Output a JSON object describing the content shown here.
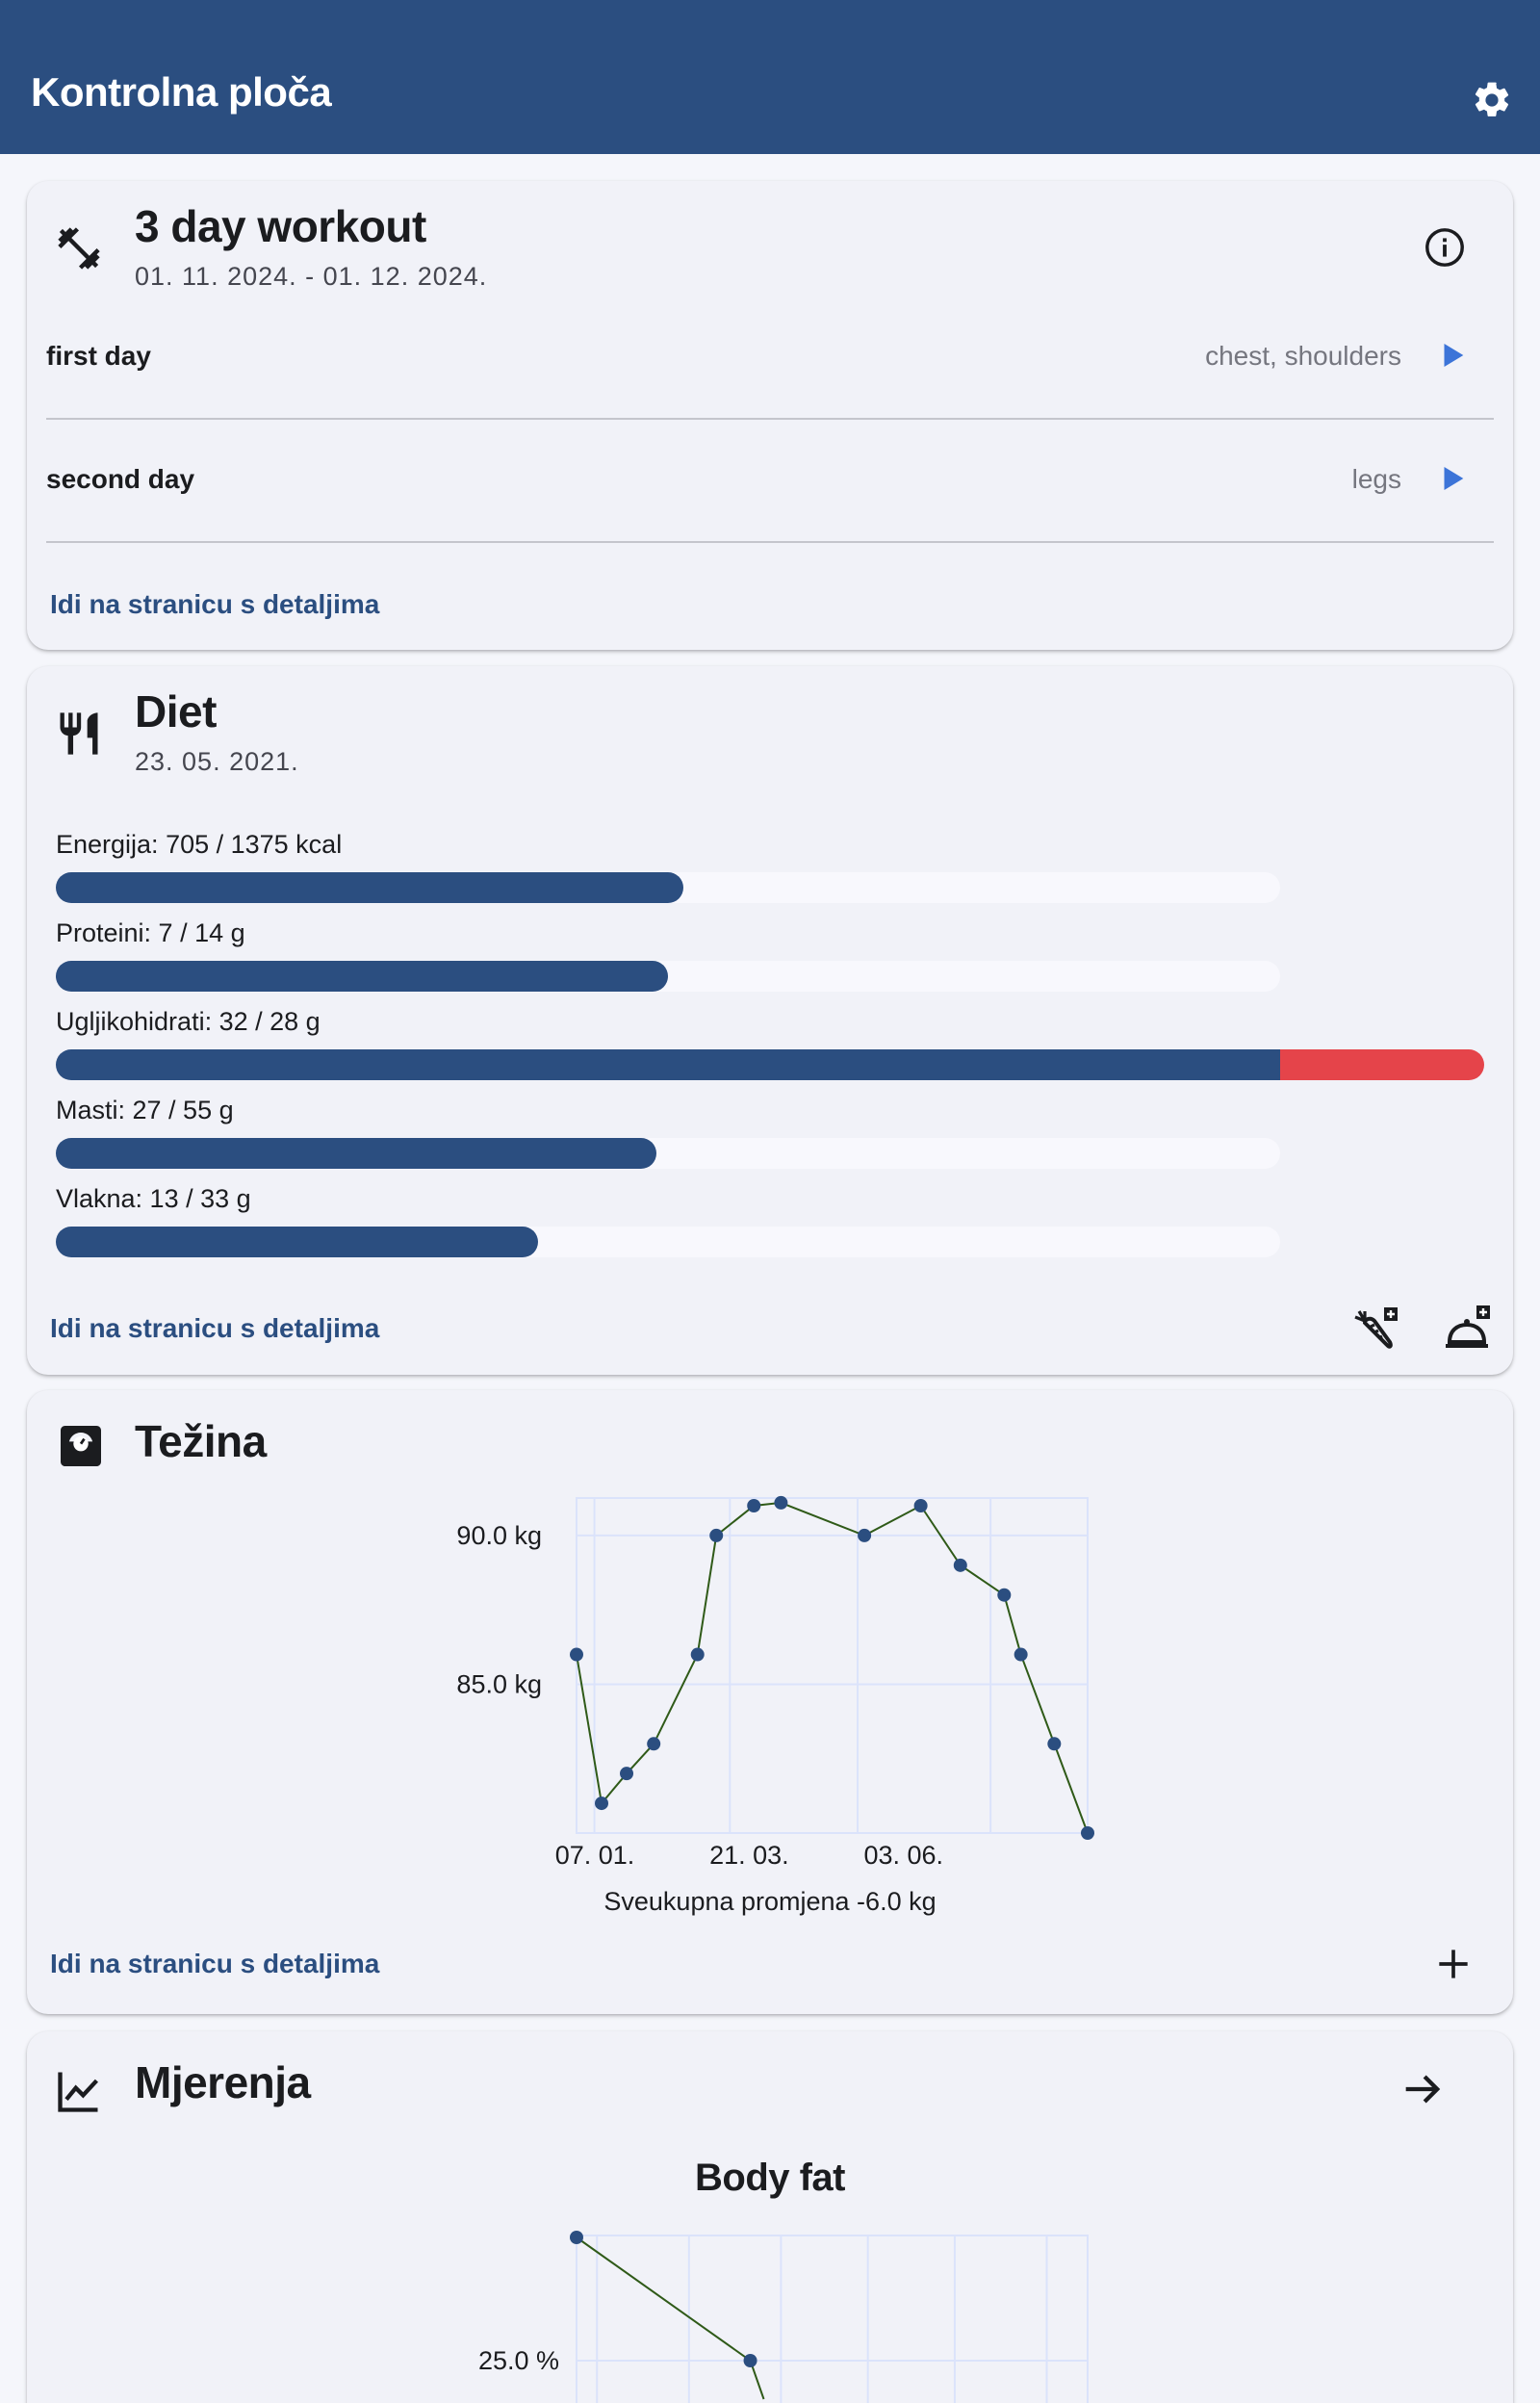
{
  "appbar": {
    "title": "Kontrolna ploča",
    "settings_icon": "gear-icon"
  },
  "workout": {
    "icon": "dumbbell-icon",
    "title": "3 day workout",
    "dates": "01. 11. 2024. - 01. 12. 2024.",
    "info_icon": "info-icon",
    "days": [
      {
        "name": "first day",
        "muscles": "chest, shoulders",
        "icon": "play-icon"
      },
      {
        "name": "second day",
        "muscles": "legs",
        "icon": "play-icon"
      }
    ],
    "details_link": "Idi na stranicu s detaljima"
  },
  "diet": {
    "icon": "cutlery-icon",
    "title": "Diet",
    "date": "23. 05. 2021.",
    "nutrients": [
      {
        "label": "Energija: 705 / 1375 kcal",
        "value": 705,
        "target": 1375
      },
      {
        "label": "Proteini: 7 / 14 g",
        "value": 7,
        "target": 14
      },
      {
        "label": "Ugljikohidrati: 32 / 28 g",
        "value": 32,
        "target": 28
      },
      {
        "label": "Masti: 27 / 55 g",
        "value": 27,
        "target": 55
      },
      {
        "label": "Vlakna: 13 / 33 g",
        "value": 13,
        "target": 33
      }
    ],
    "details_link": "Idi na stranicu s detaljima",
    "action_icons": [
      "add-ingredient-icon",
      "add-meal-icon"
    ],
    "colors": {
      "fill": "#2b4e80",
      "track": "#f8f8fd",
      "over": "#e5444a"
    }
  },
  "weight": {
    "icon": "scale-icon",
    "title": "Težina",
    "details_link": "Idi na stranicu s detaljima",
    "add_icon": "plus-icon",
    "summary": "Sveukupna promjena -6.0 kg",
    "chart_data": {
      "type": "line",
      "ytick_labels": [
        "85.0 kg",
        "90.0 kg"
      ],
      "yticks": [
        85,
        90
      ],
      "xtick_labels": [
        "07. 01.",
        "21. 03.",
        "03. 06."
      ],
      "xticks": [
        "2024-01-07",
        "2024-03-21",
        "2024-06-03"
      ],
      "x": [
        "2024-01-01",
        "2024-01-13",
        "2024-01-25",
        "2024-02-07",
        "2024-02-28",
        "2024-03-08",
        "2024-03-26",
        "2024-04-08",
        "2024-05-18",
        "2024-06-14",
        "2024-07-03",
        "2024-07-24",
        "2024-08-01",
        "2024-08-17",
        "2024-09-02"
      ],
      "y": [
        86.0,
        81.0,
        82.0,
        83.0,
        86.0,
        90.0,
        91.0,
        91.1,
        90.0,
        91.0,
        89.0,
        88.0,
        86.0,
        83.0,
        80.0
      ],
      "xlim": [
        "2024-01-01",
        "2024-09-02"
      ],
      "ylim": [
        80.0,
        91.0
      ],
      "grid": true,
      "colors": {
        "line": "#2f5a18",
        "point": "#2b4e80",
        "grid": "#dbe3fb"
      }
    }
  },
  "measurements": {
    "icon": "trending-up-icon",
    "title": "Mjerenja",
    "arrow_icon": "arrow-right-icon",
    "chart_data": {
      "type": "line",
      "title": "Body fat",
      "ytick_labels": [
        "25.0 %"
      ],
      "yticks": [
        25.0
      ],
      "x": [
        0,
        0.34
      ],
      "y": [
        27.0,
        25.0
      ],
      "grid": true,
      "colors": {
        "line": "#2f5a18",
        "point": "#2b4e80",
        "grid": "#dbe3fb"
      }
    }
  }
}
